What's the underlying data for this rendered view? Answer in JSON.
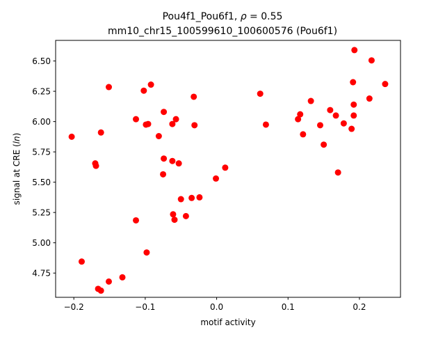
{
  "chart_data": {
    "type": "scatter",
    "title_line1_prefix": "Pou4f1_Pou6f1, ",
    "title_line1_rho_symbol": "ρ",
    "title_line1_rho_value": " = 0.55",
    "title_line2": "mm10_chr15_100599610_100600576 (Pou6f1)",
    "xlabel": "motif activity",
    "ylabel_prefix": "signal at CRE (",
    "ylabel_italic": "ln",
    "ylabel_suffix": ")",
    "xlim": [
      -0.2255,
      0.2575
    ],
    "ylim": [
      4.55,
      6.67
    ],
    "xticks": [
      -0.2,
      -0.1,
      0.0,
      0.1,
      0.2
    ],
    "xtick_labels": [
      "−0.2",
      "−0.1",
      "0.0",
      "0.1",
      "0.2"
    ],
    "yticks": [
      4.75,
      5.0,
      5.25,
      5.5,
      5.75,
      6.0,
      6.25,
      6.5
    ],
    "ytick_labels": [
      "4.75",
      "5.00",
      "5.25",
      "5.50",
      "5.75",
      "6.00",
      "6.25",
      "6.50"
    ],
    "grid": false,
    "marker_color": "#ff0000",
    "points": [
      {
        "x": -0.203,
        "y": 5.875
      },
      {
        "x": -0.189,
        "y": 4.845
      },
      {
        "x": -0.17,
        "y": 5.655
      },
      {
        "x": -0.169,
        "y": 5.635
      },
      {
        "x": -0.166,
        "y": 4.62
      },
      {
        "x": -0.162,
        "y": 5.91
      },
      {
        "x": -0.162,
        "y": 4.605
      },
      {
        "x": -0.151,
        "y": 6.285
      },
      {
        "x": -0.151,
        "y": 4.68
      },
      {
        "x": -0.132,
        "y": 4.715
      },
      {
        "x": -0.113,
        "y": 6.02
      },
      {
        "x": -0.113,
        "y": 5.185
      },
      {
        "x": -0.102,
        "y": 6.255
      },
      {
        "x": -0.099,
        "y": 5.975
      },
      {
        "x": -0.098,
        "y": 4.92
      },
      {
        "x": -0.096,
        "y": 5.98
      },
      {
        "x": -0.092,
        "y": 6.305
      },
      {
        "x": -0.081,
        "y": 5.88
      },
      {
        "x": -0.074,
        "y": 6.08
      },
      {
        "x": -0.074,
        "y": 5.695
      },
      {
        "x": -0.075,
        "y": 5.565
      },
      {
        "x": -0.062,
        "y": 5.98
      },
      {
        "x": -0.062,
        "y": 5.675
      },
      {
        "x": -0.061,
        "y": 5.235
      },
      {
        "x": -0.059,
        "y": 5.19
      },
      {
        "x": -0.057,
        "y": 6.02
      },
      {
        "x": -0.053,
        "y": 5.655
      },
      {
        "x": -0.05,
        "y": 5.36
      },
      {
        "x": -0.043,
        "y": 5.22
      },
      {
        "x": -0.035,
        "y": 5.37
      },
      {
        "x": -0.032,
        "y": 6.205
      },
      {
        "x": -0.031,
        "y": 5.97
      },
      {
        "x": -0.024,
        "y": 5.375
      },
      {
        "x": -0.001,
        "y": 5.53
      },
      {
        "x": 0.012,
        "y": 5.62
      },
      {
        "x": 0.061,
        "y": 6.23
      },
      {
        "x": 0.069,
        "y": 5.975
      },
      {
        "x": 0.114,
        "y": 6.02
      },
      {
        "x": 0.117,
        "y": 6.06
      },
      {
        "x": 0.121,
        "y": 5.895
      },
      {
        "x": 0.132,
        "y": 6.17
      },
      {
        "x": 0.145,
        "y": 5.97
      },
      {
        "x": 0.15,
        "y": 5.81
      },
      {
        "x": 0.159,
        "y": 6.095
      },
      {
        "x": 0.167,
        "y": 6.05
      },
      {
        "x": 0.17,
        "y": 5.58
      },
      {
        "x": 0.178,
        "y": 5.985
      },
      {
        "x": 0.189,
        "y": 5.94
      },
      {
        "x": 0.191,
        "y": 6.325
      },
      {
        "x": 0.192,
        "y": 6.14
      },
      {
        "x": 0.192,
        "y": 6.05
      },
      {
        "x": 0.193,
        "y": 6.59
      },
      {
        "x": 0.214,
        "y": 6.19
      },
      {
        "x": 0.217,
        "y": 6.505
      },
      {
        "x": 0.236,
        "y": 6.31
      }
    ]
  }
}
